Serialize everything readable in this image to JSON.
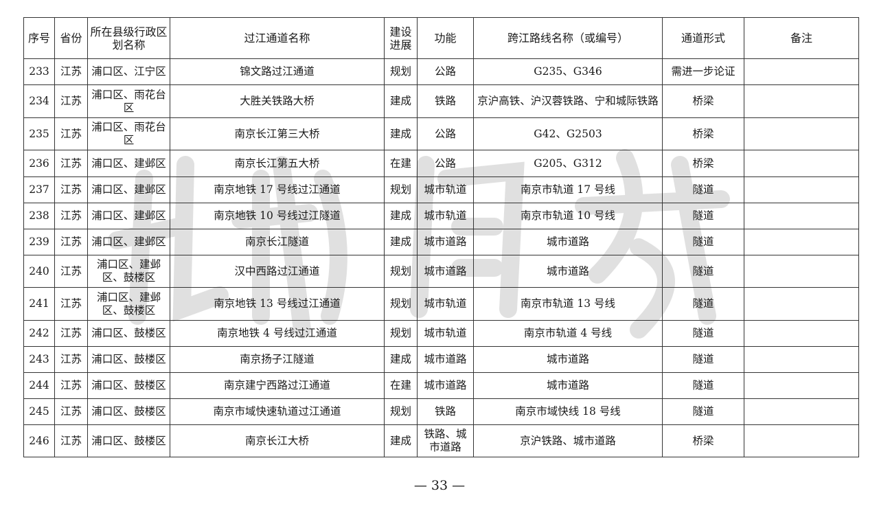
{
  "headers": [
    "序号",
    "省份",
    "所在县级行政区划名称",
    "过江通道名称",
    "建设进展",
    "功能",
    "跨江路线名称（或编号）",
    "通道形式",
    "备注"
  ],
  "rows": [
    [
      "233",
      "江苏",
      "浦口区、江宁区",
      "锦文路过江通道",
      "规划",
      "公路",
      "G235、G346",
      "需进一步论证",
      ""
    ],
    [
      "234",
      "江苏",
      "浦口区、雨花台区",
      "大胜关铁路大桥",
      "建成",
      "铁路",
      "京沪高铁、沪汉蓉铁路、宁和城际铁路",
      "桥梁",
      ""
    ],
    [
      "235",
      "江苏",
      "浦口区、雨花台区",
      "南京长江第三大桥",
      "建成",
      "公路",
      "G42、G2503",
      "桥梁",
      ""
    ],
    [
      "236",
      "江苏",
      "浦口区、建邺区",
      "南京长江第五大桥",
      "在建",
      "公路",
      "G205、G312",
      "桥梁",
      ""
    ],
    [
      "237",
      "江苏",
      "浦口区、建邺区",
      "南京地铁 17 号线过江通道",
      "规划",
      "城市轨道",
      "南京市轨道 17 号线",
      "隧道",
      ""
    ],
    [
      "238",
      "江苏",
      "浦口区、建邺区",
      "南京地铁 10 号线过江隧道",
      "建成",
      "城市轨道",
      "南京市轨道 10 号线",
      "隧道",
      ""
    ],
    [
      "239",
      "江苏",
      "浦口区、建邺区",
      "南京长江隧道",
      "建成",
      "城市道路",
      "城市道路",
      "隧道",
      ""
    ],
    [
      "240",
      "江苏",
      "浦口区、建邺区、鼓楼区",
      "汉中西路过江通道",
      "规划",
      "城市道路",
      "城市道路",
      "隧道",
      ""
    ],
    [
      "241",
      "江苏",
      "浦口区、建邺区、鼓楼区",
      "南京地铁 13 号线过江通道",
      "规划",
      "城市轨道",
      "南京市轨道 13 号线",
      "隧道",
      ""
    ],
    [
      "242",
      "江苏",
      "浦口区、鼓楼区",
      "南京地铁 4 号线过江通道",
      "规划",
      "城市轨道",
      "南京市轨道 4 号线",
      "隧道",
      ""
    ],
    [
      "243",
      "江苏",
      "浦口区、鼓楼区",
      "南京扬子江隧道",
      "建成",
      "城市道路",
      "城市道路",
      "隧道",
      ""
    ],
    [
      "244",
      "江苏",
      "浦口区、鼓楼区",
      "南京建宁西路过江通道",
      "在建",
      "城市道路",
      "城市道路",
      "隧道",
      ""
    ],
    [
      "245",
      "江苏",
      "浦口区、鼓楼区",
      "南京市域快速轨道过江通道",
      "规划",
      "铁路",
      "南京市域快线 18 号线",
      "隧道",
      ""
    ],
    [
      "246",
      "江苏",
      "浦口区、鼓楼区",
      "南京长江大桥",
      "建成",
      "铁路、城市道路",
      "京沪铁路、城市道路",
      "桥梁",
      ""
    ]
  ],
  "page_number": "— 33 —"
}
